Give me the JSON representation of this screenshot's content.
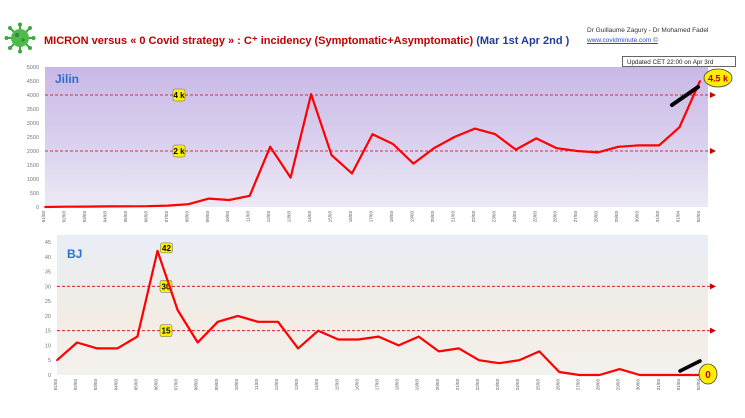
{
  "header": {
    "title_main": "MICRON versus « 0 Covid strategy » : C⁺ incidency (Symptomatic+Asymptomatic)",
    "title_dates": "(Mar 1st Apr 2nd )",
    "authors": "Dr Guillaume Zagury -  Dr Mohamed Fadel",
    "website": "www.covidminute.com ©",
    "updated": "Updated  CET 22:00 on  Apr 3rd",
    "virus_icon": "coronavirus-icon"
  },
  "colors": {
    "line": "#ff0000",
    "title": "#c00000",
    "panel_label": "#2a6fd6",
    "badge_fill": "#ffee00",
    "dashed": "#cc0000"
  },
  "chart_data": [
    {
      "type": "line",
      "panel_label": "Jilin",
      "title": "",
      "xlabel": "",
      "ylabel": "",
      "y_ticks": [
        "0",
        "500",
        "1000",
        "1500",
        "2000",
        "2500",
        "3000",
        "3500",
        "4000",
        "4500",
        "5000"
      ],
      "ylim": [
        0,
        5000
      ],
      "x": [
        "01/03",
        "02/03",
        "03/03",
        "04/03",
        "05/03",
        "06/03",
        "07/03",
        "08/03",
        "09/03",
        "10/03",
        "11/03",
        "12/03",
        "13/03",
        "14/03",
        "15/03",
        "16/03",
        "17/03",
        "18/03",
        "19/03",
        "20/03",
        "21/03",
        "22/03",
        "23/03",
        "24/03",
        "25/03",
        "26/03",
        "27/03",
        "28/03",
        "29/03",
        "30/03",
        "31/03",
        "01/04",
        "02/04"
      ],
      "series": [
        {
          "values": [
            0,
            10,
            15,
            20,
            25,
            30,
            50,
            100,
            300,
            250,
            400,
            2150,
            1050,
            4030,
            1850,
            1200,
            2600,
            2250,
            1550,
            2100,
            2500,
            2800,
            2600,
            2050,
            2450,
            2100,
            2000,
            1950,
            2150,
            2200,
            2200,
            2850,
            4500
          ]
        }
      ],
      "reference_lines": [
        {
          "value": 4000,
          "label": "4 k"
        },
        {
          "value": 2000,
          "label": "2 k"
        }
      ],
      "annotation": "4.5 k"
    },
    {
      "type": "line",
      "panel_label": "BJ",
      "title": "",
      "xlabel": "",
      "ylabel": "",
      "y_ticks": [
        "0",
        "5",
        "10",
        "15",
        "20",
        "25",
        "30",
        "35",
        "40",
        "45"
      ],
      "ylim": [
        0,
        45
      ],
      "x": [
        "01/03",
        "02/03",
        "03/03",
        "04/03",
        "05/03",
        "06/03",
        "07/03",
        "08/03",
        "09/03",
        "10/03",
        "11/03",
        "12/03",
        "13/03",
        "14/03",
        "15/03",
        "16/03",
        "17/03",
        "18/03",
        "19/03",
        "20/03",
        "21/03",
        "22/03",
        "23/03",
        "24/03",
        "25/03",
        "26/03",
        "27/03",
        "28/03",
        "29/03",
        "30/03",
        "31/03",
        "01/04",
        "02/04"
      ],
      "series": [
        {
          "values": [
            5,
            11,
            9,
            9,
            13,
            42,
            22,
            11,
            18,
            20,
            18,
            18,
            9,
            15,
            12,
            12,
            13,
            10,
            13,
            8,
            9,
            5,
            4,
            5,
            8,
            1,
            0,
            0,
            2,
            0,
            0,
            0,
            0
          ]
        }
      ],
      "reference_lines": [
        {
          "value": 30,
          "label": "30"
        },
        {
          "value": 15,
          "label": "15"
        }
      ],
      "peak_label": "42",
      "annotation": "0"
    }
  ]
}
